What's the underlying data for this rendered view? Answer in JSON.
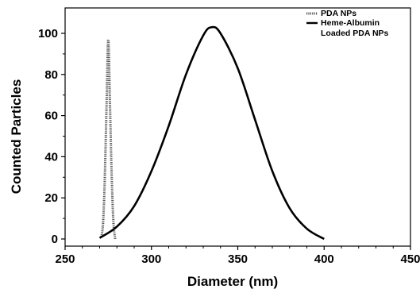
{
  "chart_data": {
    "type": "line",
    "xlabel": "Diameter (nm)",
    "ylabel": "Counted Particles",
    "xlim": [
      250,
      450
    ],
    "ylim": [
      0,
      110
    ],
    "x_ticks": [
      250,
      300,
      350,
      400,
      450
    ],
    "y_ticks": [
      0,
      20,
      40,
      60,
      80,
      100
    ],
    "grid": false,
    "legend_position": "top-right",
    "series": [
      {
        "name": "PDA NPs",
        "style": "dotted",
        "color": "#555555",
        "x": [
          271,
          272,
          273,
          274,
          275,
          276,
          277,
          278,
          279
        ],
        "y": [
          1,
          8,
          30,
          65,
          97,
          65,
          30,
          8,
          0
        ]
      },
      {
        "name": "Heme-Albumin Loaded PDA NPs",
        "legend_lines": [
          "Heme-Albumin",
          "Loaded PDA NPs"
        ],
        "style": "solid",
        "color": "#000000",
        "x": [
          270,
          280,
          290,
          300,
          310,
          320,
          330,
          335,
          340,
          350,
          360,
          370,
          380,
          390,
          400
        ],
        "y": [
          0.5,
          6,
          16,
          33,
          55,
          80,
          99,
          103,
          100,
          83,
          58,
          33,
          15,
          5,
          0
        ]
      }
    ]
  }
}
